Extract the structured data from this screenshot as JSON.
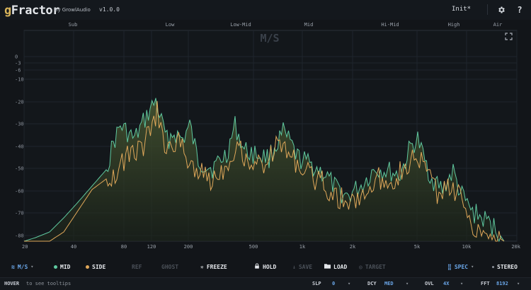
{
  "header": {
    "logo_g": "g",
    "logo_rest": "Fractor",
    "by": "by GrowlAudio",
    "version": "v1.0.0",
    "preset": "Init*",
    "icons": [
      "gear-icon",
      "help-icon"
    ],
    "help_glyph": "?"
  },
  "graph": {
    "mode": "M/S",
    "bands": [
      "Sub",
      "Low",
      "Low-Mid",
      "Mid",
      "Hi-Mid",
      "High",
      "Air"
    ],
    "db_ticks": [
      "0",
      "-3",
      "-6",
      "-10",
      "-20",
      "-30",
      "-40",
      "-50",
      "-60",
      "-70",
      "-80"
    ],
    "freq_ticks": [
      "20",
      "40",
      "80",
      "120",
      "200",
      "500",
      "1k",
      "2k",
      "5k",
      "10k",
      "20k"
    ],
    "colors": {
      "mid": "#5fc9a0",
      "side": "#e0a85a",
      "fill": "#3d4a2e"
    }
  },
  "toolbar": {
    "ms": "M/S",
    "mid": "MID",
    "side": "SIDE",
    "ref": "REF",
    "ghost": "GHOST",
    "freeze": "FREEZE",
    "hold": "HOLD",
    "save": "SAVE",
    "load": "LOAD",
    "target": "TARGET",
    "spec": "SPEC",
    "stereo": "STEREO"
  },
  "status": {
    "hover_key": "HOVER",
    "hover_text": "to see tooltips",
    "slp_label": "SLP",
    "slp_value": "0",
    "dcy_label": "DCY",
    "dcy_value": "MED",
    "ovl_label": "OVL",
    "ovl_value": "4X",
    "fft_label": "FFT",
    "fft_value": "8192"
  }
}
